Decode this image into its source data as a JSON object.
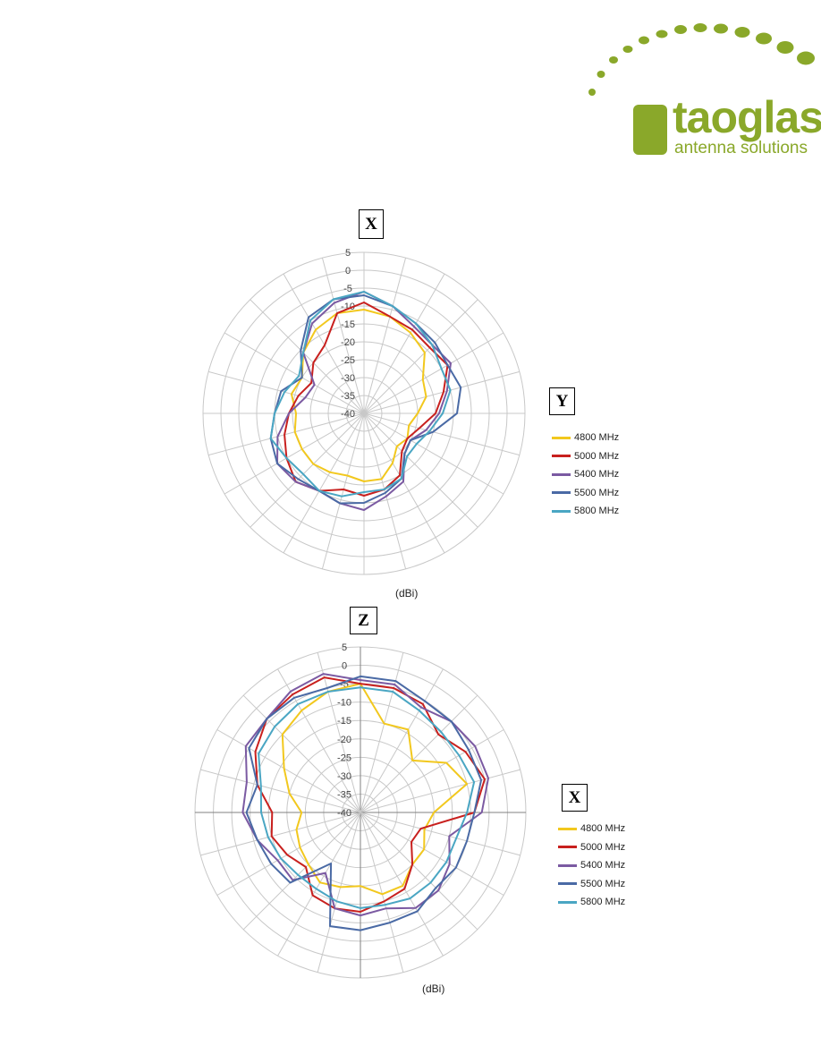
{
  "logo": {
    "name": "taoglas",
    "tagline": "antenna solutions",
    "color": "#8aa82a"
  },
  "chart_data": [
    {
      "type": "polar-line",
      "axis_label_top": "X",
      "axis_label_right": "Y",
      "radial_unit": "(dBi)",
      "r_ticks": [
        "5",
        "0",
        "-5",
        "-10",
        "-15",
        "-20",
        "-25",
        "-30",
        "-35",
        "-40"
      ],
      "r_range": [
        -40,
        5
      ],
      "angle_step_deg": 15,
      "series": [
        {
          "name": "4800 MHz",
          "color": "#f2c81e",
          "r": [
            -11,
            -12,
            -14,
            -16,
            -21,
            -22,
            -25,
            -27,
            -26,
            -27,
            -24,
            -21,
            -21,
            -22,
            -21,
            -20,
            -20,
            -20,
            -21,
            -19,
            -20,
            -16,
            -13,
            -11
          ]
        },
        {
          "name": "5000 MHz",
          "color": "#c8201e",
          "r": [
            -9,
            -12,
            -13,
            -14,
            -13,
            -17,
            -20,
            -24,
            -26,
            -25,
            -20,
            -18,
            -17,
            -18,
            -15,
            -13,
            -15,
            -17,
            -19,
            -21,
            -23,
            -20,
            -18,
            -11
          ]
        },
        {
          "name": "5400 MHz",
          "color": "#7b5aa2",
          "r": [
            -6,
            -9,
            -12,
            -13,
            -12,
            -16,
            -19,
            -22,
            -25,
            -24,
            -18,
            -16,
            -13,
            -14,
            -15,
            -13,
            -12,
            -15,
            -19,
            -23,
            -24,
            -16,
            -11,
            -8
          ]
        },
        {
          "name": "5500 MHz",
          "color": "#4a6aa5",
          "r": [
            -7,
            -9,
            -11,
            -12,
            -13,
            -12,
            -14,
            -20,
            -25,
            -24,
            -19,
            -17,
            -15,
            -14,
            -15,
            -14,
            -12,
            -13,
            -15,
            -16,
            -20,
            -15,
            -9,
            -7
          ]
        },
        {
          "name": "5800 MHz",
          "color": "#4aa6c3",
          "r": [
            -6,
            -9,
            -11,
            -13,
            -15,
            -15,
            -18,
            -21,
            -23,
            -23,
            -19,
            -18,
            -18,
            -16,
            -15,
            -16,
            -15,
            -13,
            -15,
            -17,
            -19,
            -16,
            -10,
            -7
          ]
        }
      ]
    },
    {
      "type": "polar-line",
      "axis_label_top": "Z",
      "axis_label_right": "X",
      "radial_unit": "(dBi)",
      "r_ticks": [
        "5",
        "0",
        "-5",
        "-10",
        "-15",
        "-20",
        "-25",
        "-30",
        "-35",
        "-40"
      ],
      "r_range": [
        -40,
        5
      ],
      "angle_step_deg": 15,
      "series": [
        {
          "name": "4800 MHz",
          "color": "#f2c81e",
          "r": [
            -5,
            -15,
            -14,
            -20,
            -13,
            -10,
            -20,
            -22,
            -20,
            -20,
            -17,
            -17,
            -20,
            -19,
            -18,
            -20,
            -21,
            -22,
            -24,
            -20,
            -16,
            -10,
            -8,
            -6
          ]
        },
        {
          "name": "5000 MHz",
          "color": "#c8201e",
          "r": [
            -5,
            -5,
            -6,
            -10,
            -7,
            -5,
            -9,
            -23,
            -24,
            -20,
            -16,
            -15,
            -13,
            -13,
            -14,
            -19,
            -17,
            -15,
            -16,
            -11,
            -7,
            -4,
            -3,
            -2
          ]
        },
        {
          "name": "5400 MHz",
          "color": "#7b5aa2",
          "r": [
            -4,
            -4,
            -7,
            -5,
            -4,
            -4,
            -7,
            -15,
            -12,
            -10,
            -10,
            -13,
            -12,
            -13,
            -21,
            -14,
            -14,
            -11,
            -8,
            -8,
            -4,
            -4,
            -2,
            -1
          ]
        },
        {
          "name": "5500 MHz",
          "color": "#4a6aa5",
          "r": [
            -3,
            -3,
            -5,
            -5,
            -6,
            -6,
            -9,
            -10,
            -10,
            -11,
            -9,
            -9,
            -8,
            -8,
            -24,
            -13,
            -12,
            -11,
            -9,
            -11,
            -5,
            -4,
            -4,
            -5
          ]
        },
        {
          "name": "5800 MHz",
          "color": "#4aa6c3",
          "r": [
            -6,
            -6,
            -8,
            -9,
            -9,
            -8,
            -11,
            -13,
            -13,
            -13,
            -13,
            -14,
            -14,
            -15,
            -16,
            -16,
            -15,
            -14,
            -13,
            -12,
            -8,
            -7,
            -6,
            -6
          ]
        }
      ]
    }
  ]
}
